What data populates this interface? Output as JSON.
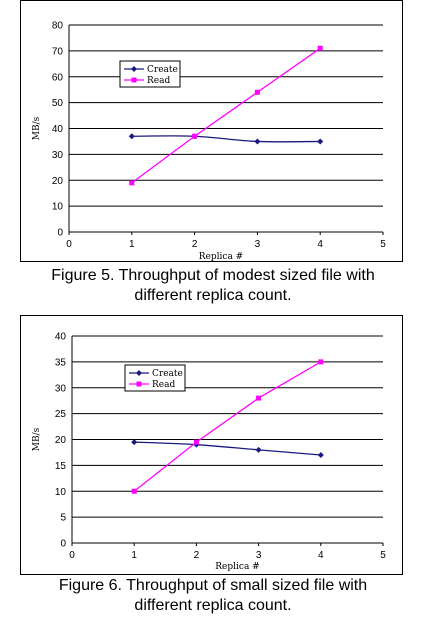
{
  "chart_data": [
    {
      "type": "line",
      "caption_line1": "Figure 5. Throughput of modest sized file with",
      "caption_line2": "different replica count.",
      "xlabel": "Replica #",
      "ylabel": "MB/s",
      "xlim": [
        0,
        5
      ],
      "ylim": [
        0,
        80
      ],
      "xticks": [
        "0",
        "1",
        "2",
        "3",
        "4",
        "5"
      ],
      "yticks": [
        "0",
        "10",
        "20",
        "30",
        "40",
        "50",
        "60",
        "70",
        "80"
      ],
      "grid": true,
      "legend_position": "upper-left",
      "x": [
        1,
        2,
        3,
        4
      ],
      "series": [
        {
          "name": "Create",
          "values": [
            37,
            37,
            35,
            35
          ],
          "color": "#1a1a80",
          "marker": "diamond",
          "smooth": true
        },
        {
          "name": "Read",
          "values": [
            19,
            37,
            54,
            71
          ],
          "color": "#ff00ff",
          "marker": "square",
          "smooth": false
        }
      ]
    },
    {
      "type": "line",
      "caption_line1": "Figure 6. Throughput of small sized file with",
      "caption_line2": "different replica count.",
      "xlabel": "Replica #",
      "ylabel": "MB/s",
      "xlim": [
        0,
        5
      ],
      "ylim": [
        0,
        40
      ],
      "xticks": [
        "0",
        "1",
        "2",
        "3",
        "4",
        "5"
      ],
      "yticks": [
        "0",
        "5",
        "10",
        "15",
        "20",
        "25",
        "30",
        "35",
        "40"
      ],
      "grid": true,
      "legend_position": "upper-left",
      "x": [
        1,
        2,
        3,
        4
      ],
      "series": [
        {
          "name": "Create",
          "values": [
            19.5,
            19,
            18,
            17
          ],
          "color": "#1a1a80",
          "marker": "diamond",
          "smooth": true
        },
        {
          "name": "Read",
          "values": [
            10,
            19.5,
            28,
            35
          ],
          "color": "#ff00ff",
          "marker": "square",
          "smooth": false
        }
      ]
    }
  ]
}
